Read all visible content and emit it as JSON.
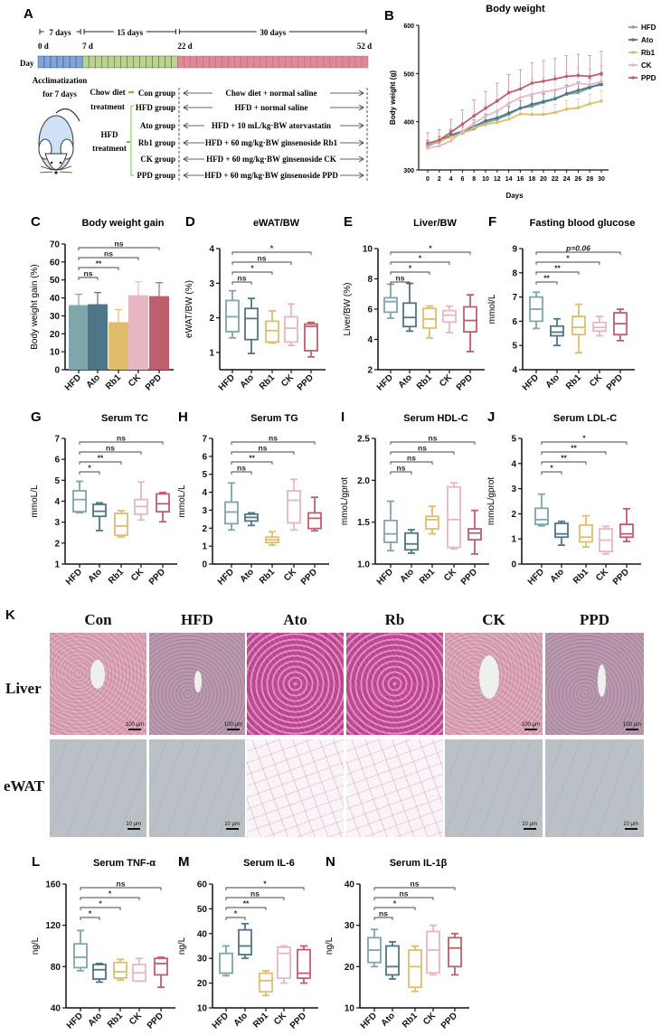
{
  "colors": {
    "HFD": "#7fa6ab",
    "Ato": "#4e7588",
    "Rb1": "#dfbd6c",
    "CK": "#e6b7c3",
    "PPD": "#bf5f6d",
    "timeline_acclimatization": "#7ea5de",
    "timeline_model": "#b9d48e",
    "timeline_treatment": "#dc8a95",
    "bracket": "#7ac143"
  },
  "panel_A": {
    "label": "A",
    "durations": [
      "7 days",
      "15 days",
      "30 days"
    ],
    "day_marks": [
      "0 d",
      "7 d",
      "22 d",
      "52 d"
    ],
    "day_label": "Day",
    "acclimatization": [
      "Acclimatization",
      "for 7 days"
    ],
    "chow_treatment": [
      "Chow diet",
      "treatment"
    ],
    "hfd_treatment": [
      "HFD",
      "treatment"
    ],
    "groups": [
      {
        "name": "Con group",
        "regimen": "Chow diet + normal saline"
      },
      {
        "name": "HFD group",
        "regimen": "HFD + normal saline"
      },
      {
        "name": "Ato group",
        "regimen": "HFD +  10 mL/kg·BW atorvastatin"
      },
      {
        "name": "Rb1 group",
        "regimen": "HFD + 60 mg/kg·BW  ginsenoside Rb1"
      },
      {
        "name": "CK group",
        "regimen": "HFD + 60 mg/kg·BW ginsenoside CK"
      },
      {
        "name": "PPD group",
        "regimen": "HFD + 60 mg/kg·BW ginsenoside PPD"
      }
    ]
  },
  "panel_K": {
    "label": "K",
    "columns": [
      "Con",
      "HFD",
      "Ato",
      "Rb",
      "CK",
      "PPD"
    ],
    "rows": [
      "Liver",
      "eWAT"
    ],
    "liver_scale": "100 μm",
    "ewat_scale": "10 μm"
  },
  "chart_data": [
    {
      "panel": "B",
      "type": "line",
      "title": "Body weight",
      "xlabel": "Days",
      "ylabel": "Body weight (g)",
      "xlim": [
        0,
        30
      ],
      "ylim": [
        300,
        600
      ],
      "xticks": [
        "0",
        "2",
        "4",
        "6",
        "8",
        "10",
        "12",
        "14",
        "16",
        "18",
        "20",
        "22",
        "24",
        "26",
        "28",
        "30"
      ],
      "yticks": [
        "300",
        "400",
        "500",
        "600"
      ],
      "legend": "right",
      "x": [
        0,
        2,
        4,
        6,
        8,
        10,
        12,
        14,
        16,
        18,
        20,
        22,
        24,
        26,
        28,
        30
      ],
      "series": [
        {
          "name": "HFD",
          "values": [
            352,
            358,
            370,
            377,
            385,
            398,
            405,
            415,
            428,
            432,
            440,
            447,
            457,
            460,
            470,
            480
          ],
          "sd": [
            10,
            10,
            12,
            12,
            14,
            14,
            15,
            15,
            16,
            16,
            17,
            17,
            18,
            18,
            18,
            19
          ]
        },
        {
          "name": "Ato",
          "values": [
            350,
            360,
            372,
            380,
            390,
            402,
            408,
            418,
            428,
            436,
            442,
            448,
            458,
            465,
            472,
            477
          ],
          "sd": [
            10,
            10,
            12,
            12,
            14,
            14,
            15,
            15,
            16,
            16,
            17,
            17,
            18,
            18,
            18,
            19
          ]
        },
        {
          "name": "Rb1",
          "values": [
            352,
            360,
            368,
            376,
            388,
            394,
            399,
            405,
            416,
            415,
            415,
            419,
            426,
            429,
            437,
            443
          ],
          "sd": [
            10,
            10,
            12,
            12,
            14,
            14,
            15,
            15,
            16,
            16,
            17,
            17,
            18,
            18,
            20,
            22
          ]
        },
        {
          "name": "CK",
          "values": [
            345,
            350,
            360,
            380,
            396,
            412,
            422,
            438,
            450,
            457,
            462,
            466,
            472,
            480,
            477,
            483
          ],
          "sd": [
            12,
            13,
            15,
            18,
            20,
            22,
            24,
            26,
            28,
            30,
            30,
            30,
            30,
            32,
            32,
            34
          ]
        },
        {
          "name": "PPD",
          "values": [
            355,
            362,
            378,
            395,
            412,
            428,
            443,
            460,
            468,
            480,
            484,
            489,
            494,
            496,
            494,
            500
          ],
          "sd": [
            22,
            22,
            27,
            30,
            33,
            35,
            37,
            38,
            40,
            42,
            43,
            42,
            43,
            44,
            43,
            46
          ]
        }
      ]
    },
    {
      "panel": "C",
      "type": "bar",
      "title": "Body weight gain",
      "ylabel": "Body weight gain (%)",
      "categories": [
        "HFD",
        "Ato",
        "Rb1",
        "CK",
        "PPD"
      ],
      "ylim": [
        0,
        70
      ],
      "yticks": [
        "0",
        "10",
        "20",
        "30",
        "40",
        "50",
        "60",
        "70"
      ],
      "values": [
        36,
        36.5,
        26.5,
        41.5,
        41
      ],
      "sd": [
        6,
        6.5,
        7,
        7.5,
        7.5
      ],
      "comparisons": [
        {
          "to": "Ato",
          "label": "ns"
        },
        {
          "to": "Rb1",
          "label": "**"
        },
        {
          "to": "CK",
          "label": "ns"
        },
        {
          "to": "PPD",
          "label": "ns"
        }
      ]
    },
    {
      "panel": "D",
      "type": "box",
      "title": "eWAT/BW",
      "ylabel": "eWAT/BW (%)",
      "categories": [
        "HFD",
        "Ato",
        "Rb1",
        "CK",
        "PPD"
      ],
      "ylim": [
        0.5,
        4
      ],
      "yticks": [
        "1",
        "2",
        "3",
        "4"
      ],
      "boxes": [
        [
          1.42,
          1.6,
          2.03,
          2.5,
          2.78
        ],
        [
          0.97,
          1.37,
          1.98,
          2.27,
          2.56
        ],
        [
          1.27,
          1.3,
          1.63,
          1.9,
          2.2
        ],
        [
          1.2,
          1.3,
          1.7,
          2.03,
          2.4
        ],
        [
          0.87,
          1.05,
          1.75,
          1.82,
          1.87
        ]
      ],
      "comparisons": [
        {
          "to": "Ato",
          "label": "ns"
        },
        {
          "to": "Rb1",
          "label": "*"
        },
        {
          "to": "CK",
          "label": "ns"
        },
        {
          "to": "PPD",
          "label": "*"
        }
      ]
    },
    {
      "panel": "E",
      "type": "box",
      "title": "Liver/BW",
      "ylabel": "Liver/BW (%)",
      "categories": [
        "HFD",
        "Ato",
        "Rb1",
        "CK",
        "PPD"
      ],
      "ylim": [
        2,
        10
      ],
      "yticks": [
        "2",
        "4",
        "6",
        "8",
        "10"
      ],
      "boxes": [
        [
          5.4,
          5.8,
          6.5,
          6.75,
          7.65
        ],
        [
          4.55,
          4.85,
          5.45,
          6.4,
          7.7
        ],
        [
          4.1,
          4.75,
          5.35,
          6.05,
          6.2
        ],
        [
          4.45,
          5.15,
          5.6,
          5.9,
          6.2
        ],
        [
          3.2,
          4.5,
          5.25,
          6.15,
          6.95
        ]
      ],
      "comparisons": [
        {
          "to": "Ato",
          "label": "ns"
        },
        {
          "to": "Rb1",
          "label": "*"
        },
        {
          "to": "CK",
          "label": "*"
        },
        {
          "to": "PPD",
          "label": "*"
        }
      ]
    },
    {
      "panel": "F",
      "type": "box",
      "title": "Fasting blood glucose",
      "ylabel": "mmol/L",
      "categories": [
        "HFD",
        "Ato",
        "Rb1",
        "CK",
        "PPD"
      ],
      "ylim": [
        4,
        9
      ],
      "yticks": [
        "4",
        "5",
        "6",
        "7",
        "8",
        "9"
      ],
      "boxes": [
        [
          5.7,
          6.0,
          6.5,
          7.0,
          7.2
        ],
        [
          5.0,
          5.4,
          5.55,
          5.8,
          6.1
        ],
        [
          4.7,
          5.45,
          5.75,
          6.2,
          6.7
        ],
        [
          5.4,
          5.6,
          5.75,
          5.95,
          6.2
        ],
        [
          5.2,
          5.45,
          5.9,
          6.35,
          6.5
        ]
      ],
      "comparisons": [
        {
          "to": "Ato",
          "label": "**"
        },
        {
          "to": "Rb1",
          "label": "**"
        },
        {
          "to": "CK",
          "label": "*"
        },
        {
          "to": "PPD",
          "label": "p=0.06"
        }
      ]
    },
    {
      "panel": "G",
      "type": "box",
      "title": "Serum TC",
      "ylabel": "mmoL/L",
      "categories": [
        "HFD",
        "Ato",
        "Rb1",
        "CK",
        "PPD"
      ],
      "ylim": [
        1,
        7
      ],
      "yticks": [
        "1",
        "2",
        "3",
        "4",
        "5",
        "6",
        "7"
      ],
      "boxes": [
        [
          3.45,
          3.5,
          4.08,
          4.5,
          4.95
        ],
        [
          2.6,
          3.28,
          3.52,
          3.85,
          3.92
        ],
        [
          2.3,
          2.38,
          2.82,
          3.42,
          3.55
        ],
        [
          3.1,
          3.38,
          3.75,
          4.08,
          4.92
        ],
        [
          3.02,
          3.5,
          3.88,
          4.35,
          4.42
        ]
      ],
      "comparisons": [
        {
          "to": "Ato",
          "label": "*"
        },
        {
          "to": "Rb1",
          "label": "**"
        },
        {
          "to": "CK",
          "label": "ns"
        },
        {
          "to": "PPD",
          "label": "ns"
        }
      ]
    },
    {
      "panel": "H",
      "type": "box",
      "title": "Serum TG",
      "ylabel": "mmoL/L",
      "categories": [
        "HFD",
        "Ato",
        "Rb1",
        "CK",
        "PPD"
      ],
      "ylim": [
        0,
        7
      ],
      "yticks": [
        "0",
        "1",
        "2",
        "3",
        "4",
        "5",
        "6",
        "7"
      ],
      "boxes": [
        [
          1.9,
          2.25,
          2.9,
          3.45,
          4.52
        ],
        [
          2.15,
          2.4,
          2.6,
          2.78,
          2.85
        ],
        [
          1.05,
          1.2,
          1.35,
          1.5,
          1.8
        ],
        [
          1.9,
          2.3,
          3.55,
          4.08,
          4.72
        ],
        [
          1.85,
          1.98,
          2.55,
          2.85,
          3.72
        ]
      ],
      "comparisons": [
        {
          "to": "Ato",
          "label": "ns"
        },
        {
          "to": "Rb1",
          "label": "**"
        },
        {
          "to": "CK",
          "label": "ns"
        },
        {
          "to": "PPD",
          "label": "ns"
        }
      ]
    },
    {
      "panel": "I",
      "type": "box",
      "title": "Serum HDL-C",
      "ylabel": "mmoL/gprot",
      "categories": [
        "HFD",
        "Ato",
        "Rb1",
        "CK",
        "PPD"
      ],
      "ylim": [
        1.0,
        2.5
      ],
      "yticks": [
        "1.0",
        "1.5",
        "2.0",
        "2.5"
      ],
      "boxes": [
        [
          1.16,
          1.26,
          1.36,
          1.52,
          1.75
        ],
        [
          1.13,
          1.17,
          1.24,
          1.37,
          1.41
        ],
        [
          1.36,
          1.42,
          1.53,
          1.57,
          1.69
        ],
        [
          1.18,
          1.2,
          1.53,
          1.92,
          1.97
        ],
        [
          1.12,
          1.29,
          1.37,
          1.42,
          1.64
        ]
      ],
      "comparisons": [
        {
          "to": "Ato",
          "label": "ns"
        },
        {
          "to": "Rb1",
          "label": "ns"
        },
        {
          "to": "CK",
          "label": "ns"
        },
        {
          "to": "PPD",
          "label": "ns"
        }
      ]
    },
    {
      "panel": "J",
      "type": "box",
      "title": "Serum LDL-C",
      "ylabel": "mmoL/gprot",
      "categories": [
        "HFD",
        "Ato",
        "Rb1",
        "CK",
        "PPD"
      ],
      "ylim": [
        0,
        5
      ],
      "yticks": [
        "0",
        "1",
        "2",
        "3",
        "4",
        "5"
      ],
      "boxes": [
        [
          1.52,
          1.58,
          1.77,
          2.22,
          2.78
        ],
        [
          0.75,
          1.07,
          1.2,
          1.62,
          1.7
        ],
        [
          0.68,
          0.88,
          1.07,
          1.55,
          1.92
        ],
        [
          0.4,
          0.5,
          0.95,
          1.4,
          1.5
        ],
        [
          0.9,
          1.07,
          1.2,
          1.58,
          2.2
        ]
      ],
      "comparisons": [
        {
          "to": "Ato",
          "label": "*"
        },
        {
          "to": "Rb1",
          "label": "**"
        },
        {
          "to": "CK",
          "label": "**"
        },
        {
          "to": "PPD",
          "label": "*"
        }
      ]
    },
    {
      "panel": "L",
      "type": "box",
      "title": "Serum TNF-α",
      "ylabel": "ng/L",
      "categories": [
        "HFD",
        "Ato",
        "Rb1",
        "CK",
        "PPD"
      ],
      "ylim": [
        40,
        160
      ],
      "yticks": [
        "40",
        "80",
        "120",
        "160"
      ],
      "boxes": [
        [
          76,
          79,
          89,
          102,
          115
        ],
        [
          65,
          68,
          77,
          82,
          83
        ],
        [
          67,
          69,
          75,
          84,
          87
        ],
        [
          66,
          66,
          74,
          82,
          88
        ],
        [
          60,
          72,
          83,
          88,
          89
        ]
      ],
      "comparisons": [
        {
          "to": "Ato",
          "label": "*"
        },
        {
          "to": "Rb1",
          "label": "*"
        },
        {
          "to": "CK",
          "label": "*"
        },
        {
          "to": "PPD",
          "label": "ns"
        }
      ]
    },
    {
      "panel": "M",
      "type": "box",
      "title": "Serum IL-6",
      "ylabel": "ng/L",
      "categories": [
        "HFD",
        "Ato",
        "Rb1",
        "CK",
        "PPD"
      ],
      "ylim": [
        10,
        60
      ],
      "yticks": [
        "10",
        "20",
        "30",
        "40",
        "50",
        "60"
      ],
      "boxes": [
        [
          23,
          24,
          24,
          32,
          35
        ],
        [
          30,
          31.5,
          35,
          41.5,
          44
        ],
        [
          15,
          16.5,
          21,
          24,
          25
        ],
        [
          20,
          22,
          32,
          34.5,
          35
        ],
        [
          20,
          22,
          24,
          33.5,
          35
        ]
      ],
      "comparisons": [
        {
          "to": "Ato",
          "label": "*"
        },
        {
          "to": "Rb1",
          "label": "**"
        },
        {
          "to": "CK",
          "label": "ns"
        },
        {
          "to": "PPD",
          "label": "*"
        }
      ]
    },
    {
      "panel": "N",
      "type": "box",
      "title": "Serum IL-1β",
      "ylabel": "ng/L",
      "categories": [
        "HFD",
        "Ato",
        "Rb1",
        "CK",
        "PPD"
      ],
      "ylim": [
        10,
        40
      ],
      "yticks": [
        "10",
        "20",
        "30",
        "40"
      ],
      "boxes": [
        [
          20,
          21,
          24,
          27,
          29
        ],
        [
          17,
          18,
          20,
          25,
          26
        ],
        [
          14,
          15,
          20,
          24,
          25
        ],
        [
          18,
          18.5,
          24,
          28.5,
          30
        ],
        [
          18,
          20,
          24.5,
          27,
          28
        ]
      ],
      "comparisons": [
        {
          "to": "Ato",
          "label": "ns"
        },
        {
          "to": "Rb1",
          "label": "*"
        },
        {
          "to": "CK",
          "label": "ns"
        },
        {
          "to": "PPD",
          "label": "ns"
        }
      ]
    }
  ]
}
